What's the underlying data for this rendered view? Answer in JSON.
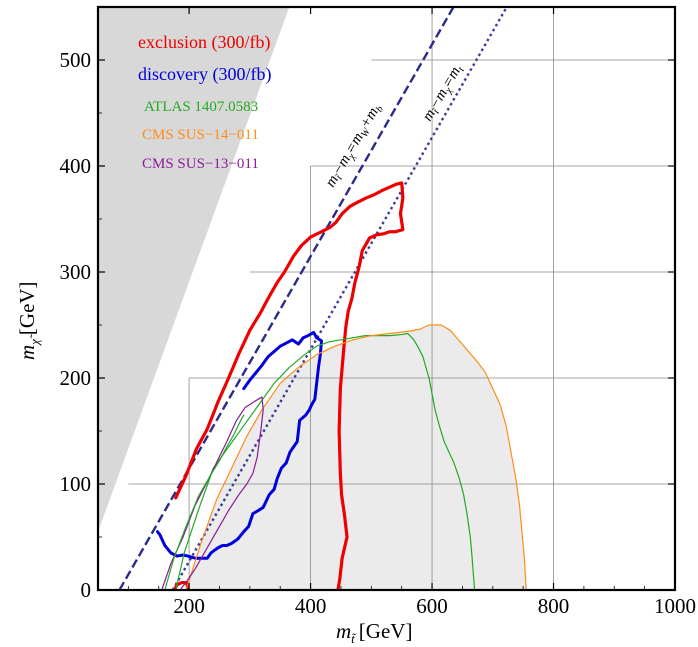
{
  "chart_data": {
    "type": "line",
    "xlim": [
      50,
      1000
    ],
    "ylim": [
      0,
      550
    ],
    "x_ticks": [
      200,
      400,
      600,
      800,
      1000
    ],
    "y_ticks": [
      0,
      100,
      200,
      300,
      400,
      500
    ],
    "xlabel": "m",
    "xlabel_sub": "t̃",
    "xlabel_unit": "[GeV]",
    "ylabel": "m",
    "ylabel_sub": "χ̃",
    "ylabel_unit": "[GeV]",
    "grid": true,
    "legend_position": "top-left",
    "legend": [
      {
        "label": "exclusion (300/fb)",
        "color": "#ee0000"
      },
      {
        "label": "discovery (300/fb)",
        "color": "#0000dd"
      },
      {
        "label": "ATLAS 1407.0583",
        "color": "#22aa22"
      },
      {
        "label": "CMS SUS−14−011",
        "color": "#ff8c1a"
      },
      {
        "label": "CMS SUS−13−011",
        "color": "#8b1a9b"
      }
    ],
    "line_labels": {
      "dashed": "m̃t−mχ̃=mW+mb",
      "dotted": "m̃t−mχ̃=mt"
    },
    "excluded_region": {
      "color": "#d8d8d8",
      "points": [
        [
          50,
          55
        ],
        [
          50,
          550
        ],
        [
          365,
          550
        ]
      ]
    },
    "series": [
      {
        "name": "exclusion (300/fb)",
        "color": "#ee0000",
        "width": 3.2,
        "points": [
          [
            178,
            87
          ],
          [
            195,
            108
          ],
          [
            212,
            133
          ],
          [
            230,
            152
          ],
          [
            248,
            178
          ],
          [
            265,
            200
          ],
          [
            282,
            223
          ],
          [
            300,
            245
          ],
          [
            318,
            262
          ],
          [
            330,
            275
          ],
          [
            345,
            290
          ],
          [
            357,
            300
          ],
          [
            372,
            315
          ],
          [
            385,
            325
          ],
          [
            400,
            333
          ],
          [
            418,
            338
          ],
          [
            432,
            342
          ],
          [
            442,
            347
          ],
          [
            452,
            355
          ],
          [
            465,
            362
          ],
          [
            478,
            366
          ],
          [
            492,
            370
          ],
          [
            505,
            373
          ],
          [
            518,
            377
          ],
          [
            530,
            380
          ],
          [
            542,
            383
          ],
          [
            550,
            384
          ],
          [
            552,
            370
          ],
          [
            548,
            355
          ],
          [
            552,
            340
          ],
          [
            540,
            338
          ],
          [
            530,
            338
          ],
          [
            520,
            336
          ],
          [
            508,
            335
          ],
          [
            497,
            332
          ],
          [
            485,
            320
          ],
          [
            480,
            305
          ],
          [
            473,
            290
          ],
          [
            468,
            275
          ],
          [
            462,
            263
          ],
          [
            458,
            248
          ],
          [
            455,
            230
          ],
          [
            452,
            210
          ],
          [
            449,
            190
          ],
          [
            448,
            170
          ],
          [
            447,
            150
          ],
          [
            448,
            130
          ],
          [
            449,
            110
          ],
          [
            451,
            90
          ],
          [
            456,
            70
          ],
          [
            460,
            50
          ],
          [
            452,
            30
          ],
          [
            448,
            10
          ],
          [
            445,
            0
          ]
        ]
      },
      {
        "name": "exclusion (300/fb) low",
        "color": "#ee0000",
        "width": 3.2,
        "points": [
          [
            176,
            0
          ],
          [
            180,
            5
          ],
          [
            188,
            7
          ],
          [
            196,
            7
          ],
          [
            198,
            0
          ]
        ]
      },
      {
        "name": "discovery (300/fb)",
        "color": "#0000dd",
        "width": 3.0,
        "points": [
          [
            290,
            190
          ],
          [
            300,
            198
          ],
          [
            310,
            205
          ],
          [
            320,
            212
          ],
          [
            330,
            220
          ],
          [
            340,
            225
          ],
          [
            350,
            230
          ],
          [
            360,
            233
          ],
          [
            370,
            236
          ],
          [
            380,
            232
          ],
          [
            388,
            238
          ],
          [
            396,
            240
          ],
          [
            405,
            243
          ],
          [
            410,
            238
          ],
          [
            418,
            235
          ],
          [
            416,
            222
          ],
          [
            413,
            210
          ],
          [
            410,
            195
          ],
          [
            407,
            180
          ],
          [
            402,
            175
          ],
          [
            398,
            170
          ],
          [
            392,
            165
          ],
          [
            382,
            160
          ],
          [
            378,
            140
          ],
          [
            372,
            135
          ],
          [
            366,
            130
          ],
          [
            360,
            120
          ],
          [
            352,
            115
          ],
          [
            345,
            105
          ],
          [
            340,
            95
          ],
          [
            332,
            90
          ],
          [
            322,
            78
          ],
          [
            314,
            75
          ],
          [
            305,
            72
          ],
          [
            298,
            60
          ],
          [
            290,
            55
          ],
          [
            280,
            48
          ],
          [
            270,
            44
          ],
          [
            262,
            42
          ],
          [
            255,
            42
          ],
          [
            248,
            40
          ],
          [
            243,
            38
          ],
          [
            236,
            35
          ],
          [
            230,
            30
          ],
          [
            220,
            30
          ],
          [
            210,
            30
          ],
          [
            198,
            32
          ],
          [
            190,
            33
          ],
          [
            180,
            32
          ],
          [
            170,
            35
          ],
          [
            160,
            42
          ],
          [
            152,
            52
          ],
          [
            148,
            55
          ]
        ]
      },
      {
        "name": "ATLAS 1407.0583",
        "color": "#22aa22",
        "width": 1.2,
        "points": [
          [
            178,
            0
          ],
          [
            192,
            35
          ],
          [
            215,
            75
          ],
          [
            240,
            115
          ],
          [
            265,
            135
          ],
          [
            290,
            155
          ],
          [
            315,
            175
          ],
          [
            340,
            195
          ],
          [
            365,
            210
          ],
          [
            390,
            222
          ],
          [
            410,
            230
          ],
          [
            430,
            234
          ],
          [
            450,
            236
          ],
          [
            470,
            238
          ],
          [
            490,
            240
          ],
          [
            510,
            240
          ],
          [
            530,
            240
          ],
          [
            550,
            241
          ],
          [
            560,
            242
          ],
          [
            570,
            236
          ],
          [
            578,
            228
          ],
          [
            585,
            220
          ],
          [
            590,
            210
          ],
          [
            595,
            200
          ],
          [
            600,
            185
          ],
          [
            605,
            170
          ],
          [
            612,
            155
          ],
          [
            620,
            140
          ],
          [
            628,
            130
          ],
          [
            636,
            120
          ],
          [
            645,
            105
          ],
          [
            652,
            90
          ],
          [
            658,
            70
          ],
          [
            663,
            50
          ],
          [
            666,
            30
          ],
          [
            668,
            15
          ],
          [
            670,
            0
          ]
        ]
      },
      {
        "name": "CMS SUS−14−011",
        "color": "#ff8c1a",
        "width": 1.2,
        "points": [
          [
            195,
            0
          ],
          [
            220,
            45
          ],
          [
            245,
            85
          ],
          [
            270,
            115
          ],
          [
            295,
            145
          ],
          [
            320,
            170
          ],
          [
            350,
            195
          ],
          [
            380,
            210
          ],
          [
            410,
            222
          ],
          [
            440,
            230
          ],
          [
            470,
            236
          ],
          [
            500,
            240
          ],
          [
            530,
            242
          ],
          [
            560,
            244
          ],
          [
            580,
            246
          ],
          [
            595,
            250
          ],
          [
            615,
            250
          ],
          [
            630,
            245
          ],
          [
            645,
            235
          ],
          [
            660,
            225
          ],
          [
            675,
            215
          ],
          [
            688,
            205
          ],
          [
            700,
            190
          ],
          [
            712,
            175
          ],
          [
            722,
            155
          ],
          [
            730,
            130
          ],
          [
            738,
            105
          ],
          [
            744,
            80
          ],
          [
            748,
            55
          ],
          [
            752,
            30
          ],
          [
            755,
            0
          ]
        ]
      },
      {
        "name": "CMS SUS−13−011",
        "color": "#8b1a9b",
        "width": 1.2,
        "points": [
          [
            155,
            0
          ],
          [
            170,
            25
          ],
          [
            190,
            50
          ],
          [
            210,
            80
          ],
          [
            228,
            100
          ],
          [
            245,
            120
          ],
          [
            262,
            140
          ],
          [
            278,
            160
          ],
          [
            292,
            172
          ],
          [
            308,
            178
          ],
          [
            320,
            182
          ],
          [
            322,
            170
          ],
          [
            318,
            150
          ],
          [
            312,
            125
          ],
          [
            305,
            110
          ],
          [
            295,
            100
          ],
          [
            282,
            90
          ],
          [
            265,
            75
          ],
          [
            245,
            55
          ],
          [
            225,
            35
          ],
          [
            210,
            20
          ],
          [
            196,
            8
          ],
          [
            185,
            0
          ]
        ]
      },
      {
        "name": "ATLAS inner",
        "color": "#22aa22",
        "width": 1.2,
        "points": [
          [
            160,
            0
          ],
          [
            175,
            30
          ],
          [
            195,
            60
          ],
          [
            215,
            88
          ],
          [
            235,
            108
          ],
          [
            250,
            122
          ],
          [
            262,
            135
          ],
          [
            275,
            148
          ],
          [
            285,
            160
          ],
          [
            290,
            165
          ]
        ]
      }
    ],
    "ref_lines": [
      {
        "style": "dashed",
        "offset": 85.3,
        "color": "#2a2a8a"
      },
      {
        "style": "dotted",
        "offset": 173,
        "color": "#3a3a9a"
      }
    ],
    "shaded_region": {
      "color": "#ebebeb",
      "points": [
        [
          195,
          0
        ],
        [
          220,
          45
        ],
        [
          245,
          85
        ],
        [
          270,
          115
        ],
        [
          295,
          145
        ],
        [
          320,
          170
        ],
        [
          350,
          195
        ],
        [
          380,
          210
        ],
        [
          410,
          222
        ],
        [
          440,
          230
        ],
        [
          470,
          236
        ],
        [
          500,
          240
        ],
        [
          530,
          242
        ],
        [
          560,
          244
        ],
        [
          580,
          246
        ],
        [
          595,
          250
        ],
        [
          615,
          250
        ],
        [
          630,
          245
        ],
        [
          645,
          235
        ],
        [
          660,
          225
        ],
        [
          675,
          215
        ],
        [
          688,
          205
        ],
        [
          700,
          190
        ],
        [
          712,
          175
        ],
        [
          722,
          155
        ],
        [
          730,
          130
        ],
        [
          738,
          105
        ],
        [
          744,
          80
        ],
        [
          748,
          55
        ],
        [
          752,
          30
        ],
        [
          755,
          0
        ]
      ]
    }
  }
}
